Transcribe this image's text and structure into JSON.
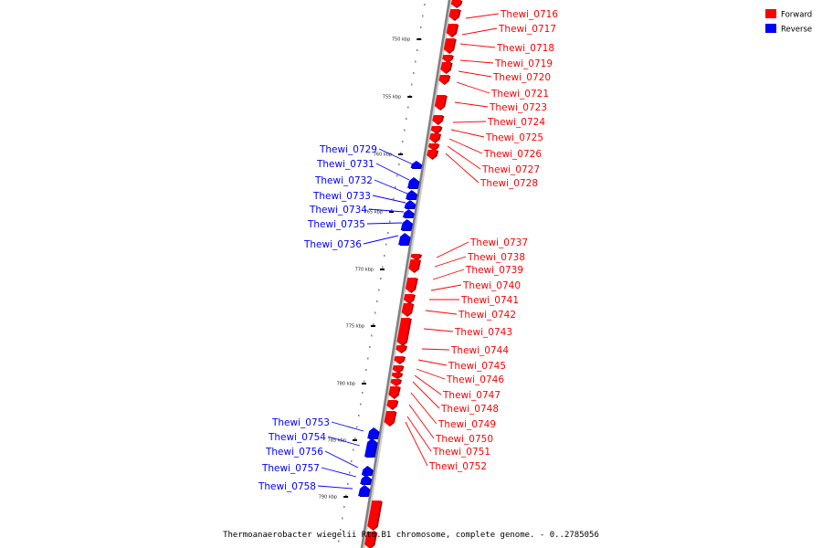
{
  "legend": {
    "items": [
      {
        "label": "Forward",
        "color": "#ff0000"
      },
      {
        "label": "Reverse",
        "color": "#0000ff"
      }
    ]
  },
  "footer": {
    "caption": "Thermoanaerobacter wiegelii Rt8.B1 chromosome, complete genome. - 0..2785056"
  },
  "colors": {
    "forward": "#ff0000",
    "reverse": "#0000ff",
    "backbone": "#808080"
  },
  "kbp_ticks": [
    "750 kbp",
    "755 kbp",
    "760 kbp",
    "765 kbp",
    "770 kbp",
    "775 kbp",
    "780 kbp",
    "785 kbp",
    "790 kbp"
  ],
  "forward_genes": [
    "Thewi_0716",
    "Thewi_0717",
    "Thewi_0718",
    "Thewi_0719",
    "Thewi_0720",
    "Thewi_0721",
    "Thewi_0723",
    "Thewi_0724",
    "Thewi_0725",
    "Thewi_0726",
    "Thewi_0727",
    "Thewi_0728",
    "Thewi_0737",
    "Thewi_0738",
    "Thewi_0739",
    "Thewi_0740",
    "Thewi_0741",
    "Thewi_0742",
    "Thewi_0743",
    "Thewi_0744",
    "Thewi_0745",
    "Thewi_0746",
    "Thewi_0747",
    "Thewi_0748",
    "Thewi_0749",
    "Thewi_0750",
    "Thewi_0751",
    "Thewi_0752"
  ],
  "reverse_genes": [
    "Thewi_0729",
    "Thewi_0731",
    "Thewi_0732",
    "Thewi_0733",
    "Thewi_0734",
    "Thewi_0735",
    "Thewi_0736",
    "Thewi_0753",
    "Thewi_0754",
    "Thewi_0756",
    "Thewi_0757",
    "Thewi_0758"
  ]
}
